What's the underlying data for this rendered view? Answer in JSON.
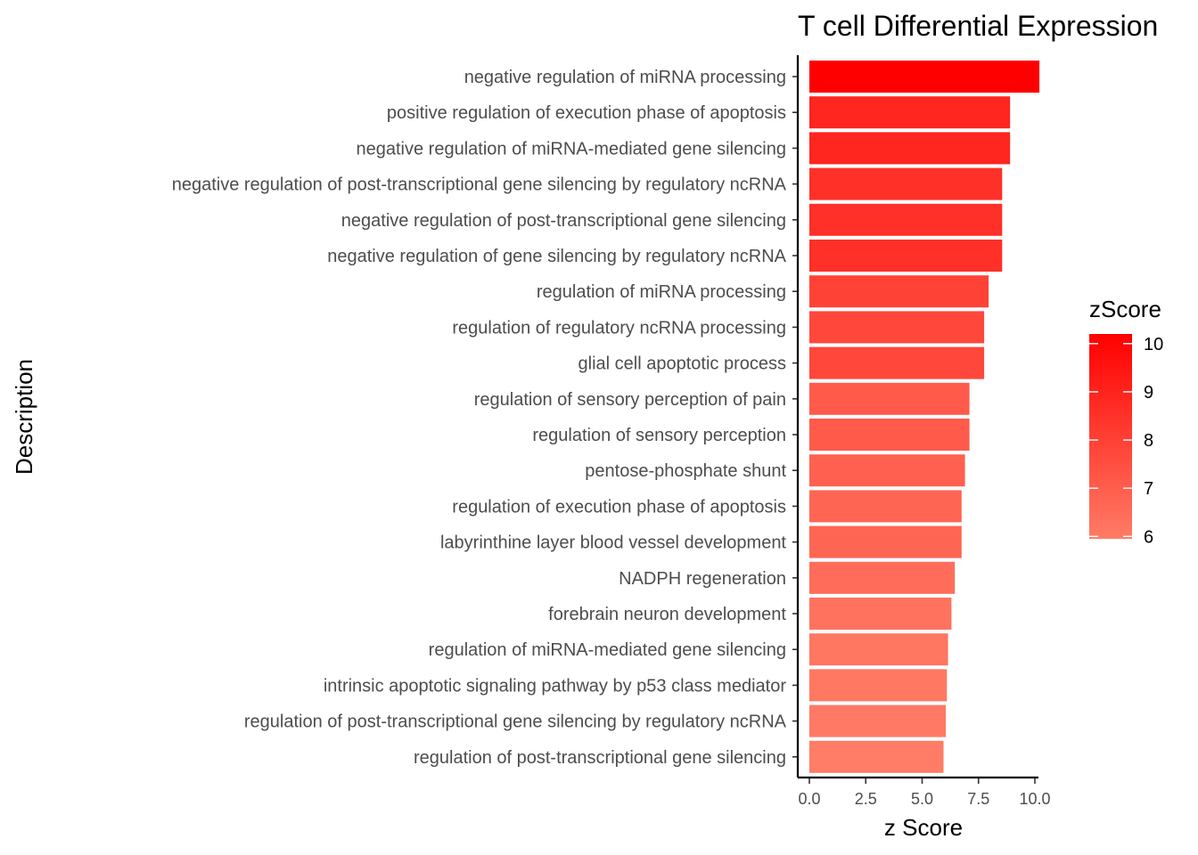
{
  "chart_data": {
    "type": "bar",
    "orientation": "horizontal",
    "title": "T cell Differential Expression",
    "xlabel": "z Score",
    "ylabel": "Description",
    "xlim": [
      0,
      10.3
    ],
    "xticks": [
      "0.0",
      "2.5",
      "5.0",
      "7.5",
      "10.0"
    ],
    "xtick_values": [
      0,
      2.5,
      5,
      7.5,
      10
    ],
    "grid": false,
    "categories": [
      "negative regulation of miRNA processing",
      "positive regulation of execution phase of apoptosis",
      "negative regulation of miRNA-mediated gene silencing",
      "negative regulation of post-transcriptional gene silencing by regulatory ncRNA",
      "negative regulation of post-transcriptional gene silencing",
      "negative regulation of gene silencing by regulatory ncRNA",
      "regulation of miRNA processing",
      "regulation of regulatory ncRNA processing",
      "glial cell apoptotic process",
      "regulation of sensory perception of pain",
      "regulation of sensory perception",
      "pentose-phosphate shunt",
      "regulation of execution phase of apoptosis",
      "labyrinthine layer blood vessel development",
      "NADPH regeneration",
      "forebrain neuron development",
      "regulation of miRNA-mediated gene silencing",
      "intrinsic apoptotic signaling pathway by p53 class mediator",
      "regulation of post-transcriptional gene silencing by regulatory ncRNA",
      "regulation of post-transcriptional gene silencing"
    ],
    "values": [
      10.2,
      8.9,
      8.9,
      8.55,
      8.55,
      8.55,
      7.95,
      7.75,
      7.75,
      7.1,
      7.1,
      6.9,
      6.75,
      6.75,
      6.45,
      6.3,
      6.15,
      6.1,
      6.05,
      5.95
    ],
    "legend": {
      "title": "zScore",
      "position": "right",
      "ticks": [
        "6",
        "7",
        "8",
        "9",
        "10"
      ],
      "tick_values": [
        6,
        7,
        8,
        9,
        10
      ],
      "range": [
        5.95,
        10.2
      ],
      "color_low": "#ff7c66",
      "color_high": "#ff0000"
    }
  }
}
